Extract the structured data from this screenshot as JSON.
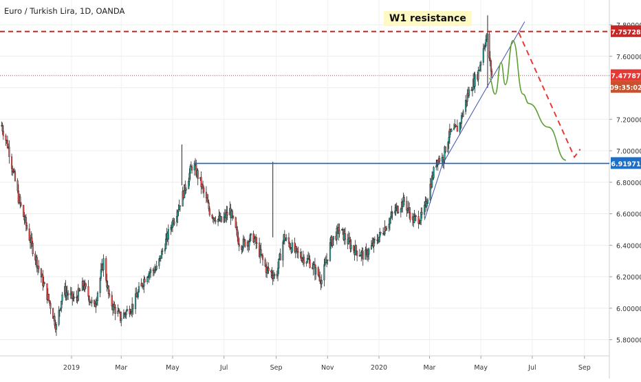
{
  "chart_data": {
    "type": "candlestick",
    "title": "Euro / Turkish Lira, 1D, OANDA",
    "annotation": "W1 resistance",
    "y_ticks": [
      "7.80000",
      "7.60000",
      "7.40000",
      "7.20000",
      "7.00000",
      "6.80000",
      "6.60000",
      "6.40000",
      "6.20000",
      "6.00000",
      "5.80000"
    ],
    "x_ticks": [
      "2019",
      "Mar",
      "May",
      "Jul",
      "Sep",
      "Nov",
      "2020",
      "Mar",
      "May",
      "Jul",
      "Sep"
    ],
    "ylim": [
      5.75,
      7.87
    ],
    "grid": true,
    "price_labels": {
      "resistance": "7.75728",
      "last_price": "7.47787",
      "countdown": "09:35:02",
      "support": "6.91971"
    },
    "levels": {
      "resistance": 7.75728,
      "last_price": 7.47787,
      "support": 6.91971
    },
    "trendline": [
      [
        "2020-02-24",
        6.56
      ],
      [
        "2020-03-16",
        6.91
      ],
      [
        "2020-06-22",
        7.82
      ]
    ],
    "forecast_path": [
      [
        "2020-05-11",
        7.46
      ],
      [
        "2020-05-18",
        7.36
      ],
      [
        "2020-05-25",
        7.56
      ],
      [
        "2020-05-30",
        7.42
      ],
      [
        "2020-06-08",
        7.7
      ],
      [
        "2020-06-20",
        7.36
      ],
      [
        "2020-06-27",
        7.3
      ],
      [
        "2020-07-20",
        7.15
      ],
      [
        "2020-08-10",
        6.94
      ]
    ],
    "projection_path": [
      [
        "2020-06-15",
        7.75
      ],
      [
        "2020-08-20",
        6.96
      ],
      [
        "2020-08-27",
        7.01
      ]
    ],
    "price_path": [
      [
        "2018-10-10",
        7.16
      ],
      [
        "2018-10-18",
        7.02
      ],
      [
        "2018-10-30",
        6.7
      ],
      [
        "2018-11-12",
        6.45
      ],
      [
        "2018-11-26",
        6.2
      ],
      [
        "2018-12-08",
        6.0
      ],
      [
        "2018-12-14",
        5.88
      ],
      [
        "2018-12-22",
        6.12
      ],
      [
        "2019-01-05",
        6.05
      ],
      [
        "2019-01-15",
        6.15
      ],
      [
        "2019-01-28",
        6.0
      ],
      [
        "2019-02-08",
        6.3
      ],
      [
        "2019-02-15",
        6.05
      ],
      [
        "2019-02-28",
        5.94
      ],
      [
        "2019-03-15",
        6.02
      ],
      [
        "2019-03-31",
        6.22
      ],
      [
        "2019-04-12",
        6.25
      ],
      [
        "2019-04-20",
        6.38
      ],
      [
        "2019-05-01",
        6.55
      ],
      [
        "2019-05-12",
        6.7
      ],
      [
        "2019-05-25",
        6.92
      ],
      [
        "2019-06-03",
        6.8
      ],
      [
        "2019-06-15",
        6.6
      ],
      [
        "2019-06-28",
        6.55
      ],
      [
        "2019-07-08",
        6.62
      ],
      [
        "2019-07-20",
        6.4
      ],
      [
        "2019-08-05",
        6.45
      ],
      [
        "2019-08-20",
        6.25
      ],
      [
        "2019-09-01",
        6.2
      ],
      [
        "2019-09-10",
        6.45
      ],
      [
        "2019-09-25",
        6.35
      ],
      [
        "2019-10-10",
        6.3
      ],
      [
        "2019-10-25",
        6.18
      ],
      [
        "2019-11-05",
        6.42
      ],
      [
        "2019-11-15",
        6.5
      ],
      [
        "2019-12-01",
        6.38
      ],
      [
        "2019-12-15",
        6.33
      ],
      [
        "2020-01-02",
        6.46
      ],
      [
        "2020-01-20",
        6.62
      ],
      [
        "2020-01-31",
        6.68
      ],
      [
        "2020-02-10",
        6.56
      ],
      [
        "2020-02-22",
        6.58
      ],
      [
        "2020-03-01",
        6.76
      ],
      [
        "2020-03-10",
        6.95
      ],
      [
        "2020-03-17",
        6.95
      ],
      [
        "2020-03-24",
        7.1
      ],
      [
        "2020-04-05",
        7.15
      ],
      [
        "2020-04-15",
        7.35
      ],
      [
        "2020-04-28",
        7.5
      ],
      [
        "2020-05-05",
        7.68
      ],
      [
        "2020-05-08",
        7.72
      ],
      [
        "2020-05-12",
        7.55
      ],
      [
        "2020-05-14",
        7.48
      ]
    ],
    "spikes": [
      [
        "2019-05-12",
        6.78,
        7.04
      ],
      [
        "2019-08-28",
        6.45,
        6.93
      ],
      [
        "2020-05-09",
        7.4,
        7.86
      ]
    ],
    "colors": {
      "up": "#26a69a",
      "down": "#ef5350",
      "wick": "#222222",
      "resistance": "#c62828",
      "last_price": "#e53935",
      "support": "#1565c0",
      "trendline": "#3f51b5",
      "forecast": "#5c9e31",
      "projection": "#e53935",
      "countdown_bg": "#c8502b",
      "resistance_label_bg": "#c62828",
      "support_label_bg": "#1f6fc6"
    }
  }
}
